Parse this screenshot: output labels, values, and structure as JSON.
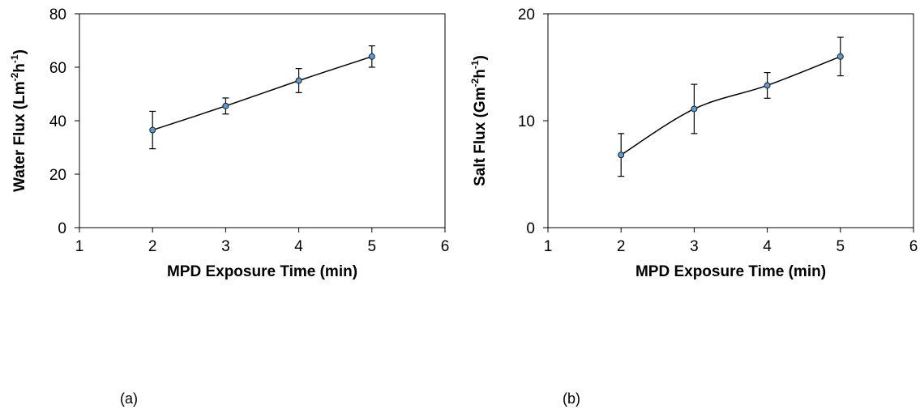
{
  "chart_data": [
    {
      "type": "line",
      "panel_label": "(a)",
      "x": [
        2,
        3,
        4,
        5
      ],
      "series": [
        {
          "values": [
            36.5,
            45.5,
            55,
            64
          ],
          "error": [
            7,
            3,
            4.5,
            4
          ],
          "color": "#5b9bd5"
        }
      ],
      "xlabel": "MPD Exposure Time (min)",
      "ylabel": {
        "base": "Water Flux (Lm",
        "sup1": "-2",
        "mid": "h",
        "sup2": "-1",
        "end": ")"
      },
      "xlim": [
        1,
        6
      ],
      "ylim": [
        0,
        80
      ],
      "xticks": [
        1,
        2,
        3,
        4,
        5,
        6
      ],
      "yticks": [
        0,
        20,
        40,
        60,
        80
      ],
      "grid": false
    },
    {
      "type": "line",
      "panel_label": "(b)",
      "x": [
        2,
        3,
        4,
        5
      ],
      "series": [
        {
          "values": [
            6.8,
            11.1,
            13.3,
            16
          ],
          "error": [
            2,
            2.3,
            1.2,
            1.8
          ],
          "color": "#5b9bd5"
        }
      ],
      "xlabel": "MPD Exposure Time (min)",
      "ylabel": {
        "base": "Salt Flux (Gm",
        "sup1": "-2",
        "mid": "h",
        "sup2": "-1",
        "end": ")"
      },
      "xlim": [
        1,
        6
      ],
      "ylim": [
        0,
        20
      ],
      "xticks": [
        1,
        2,
        3,
        4,
        5,
        6
      ],
      "yticks": [
        0,
        10,
        20
      ],
      "grid": false
    }
  ]
}
